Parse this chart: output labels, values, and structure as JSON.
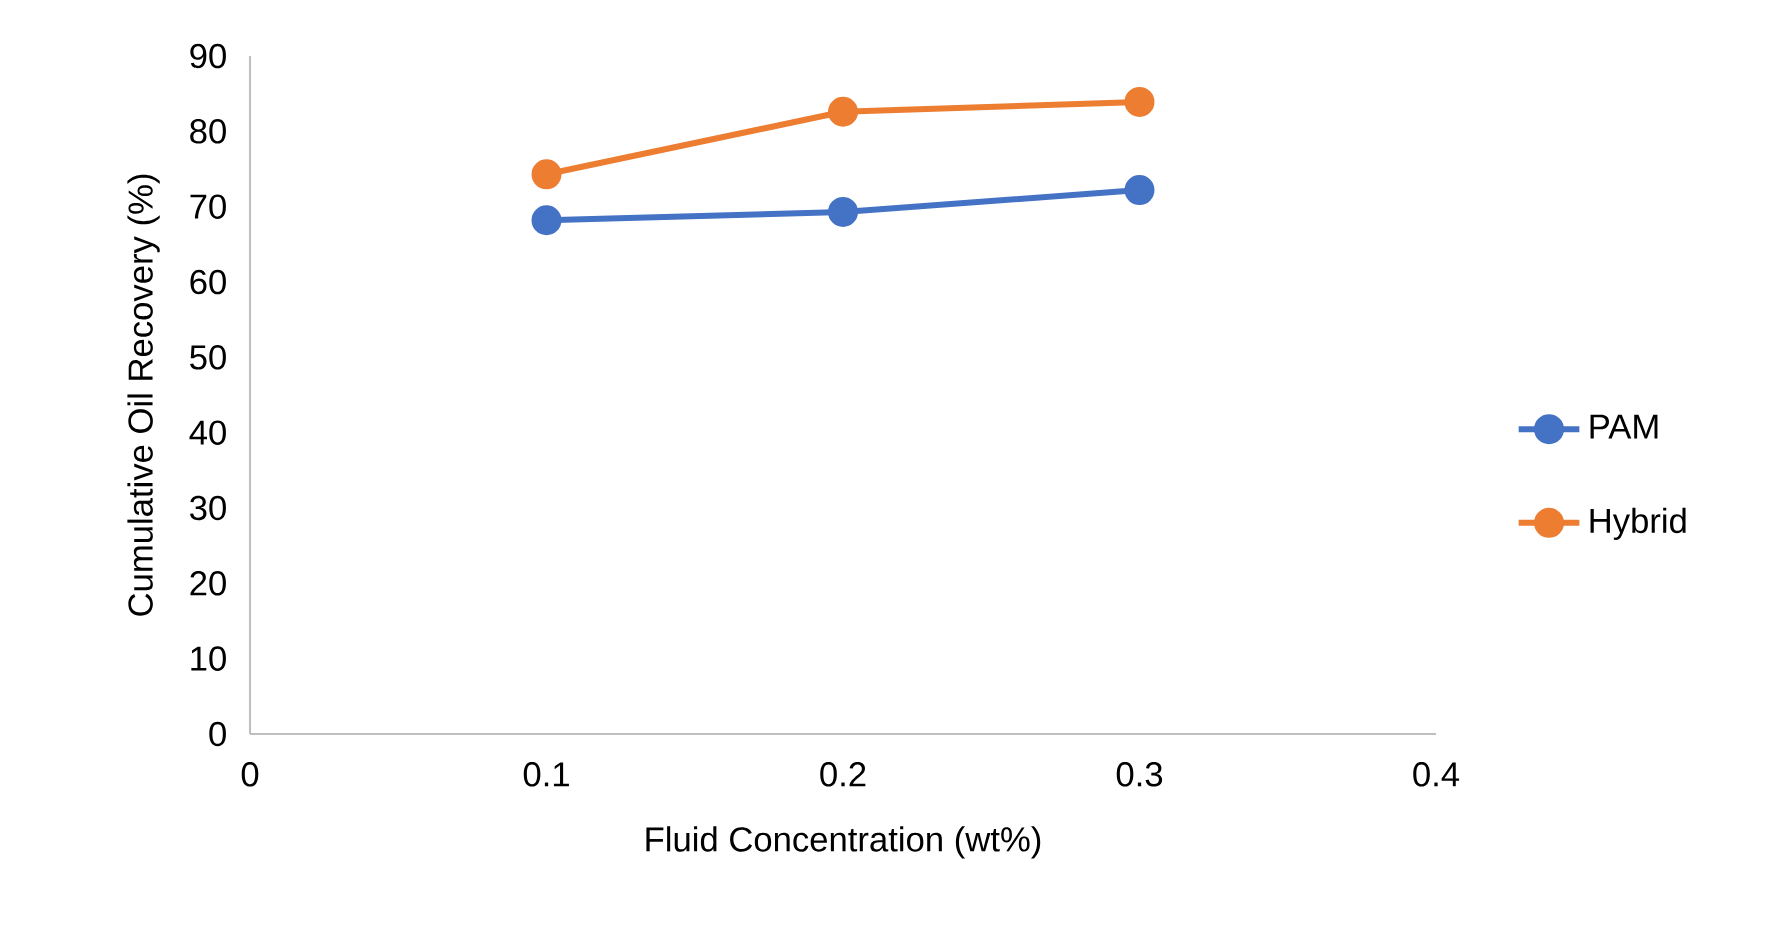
{
  "chart_data": {
    "type": "line",
    "xlabel": "Fluid Concentration (wt%)",
    "ylabel": "Cumulative Oil Recovery (%)",
    "x": [
      0.1,
      0.2,
      0.3
    ],
    "series": [
      {
        "name": "PAM",
        "color": "#4472c4",
        "values": [
          68.2,
          69.3,
          72.2
        ]
      },
      {
        "name": "Hybrid",
        "color": "#ed7d31",
        "values": [
          74.3,
          82.6,
          83.9
        ]
      }
    ],
    "xlim": [
      0,
      0.4
    ],
    "xticks": [
      0,
      0.1,
      0.2,
      0.3,
      0.4
    ],
    "ylim": [
      0,
      90
    ],
    "yticks": [
      0,
      10,
      20,
      30,
      40,
      50,
      60,
      70,
      80,
      90
    ],
    "grid": false,
    "legend": "right",
    "marker": "circle",
    "line_style": "solid"
  }
}
